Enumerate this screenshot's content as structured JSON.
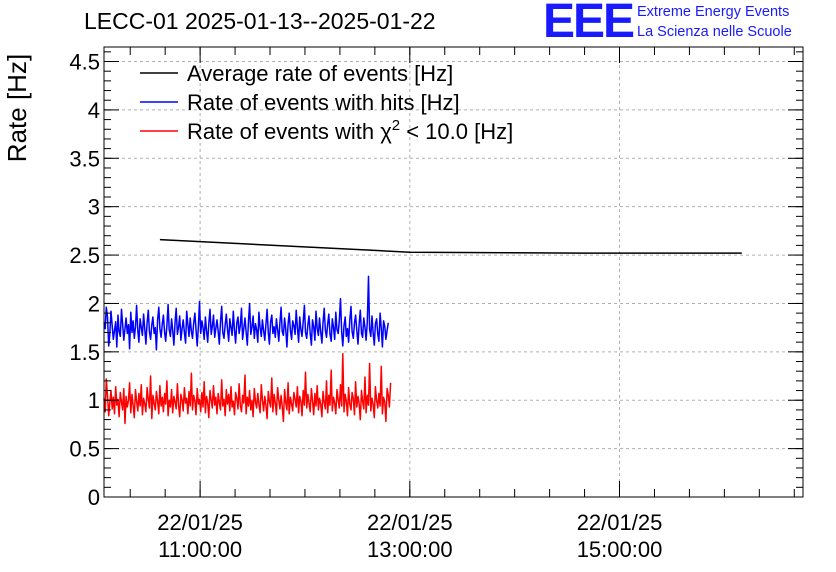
{
  "header": {
    "title": "LECC-01 2025-01-13--2025-01-22",
    "logo_text": "EEE",
    "logo_line1": "Extreme Energy Events",
    "logo_line2": "La Scienza nelle Scuole",
    "logo_color": "#1a1aff"
  },
  "chart_data": {
    "type": "line",
    "title": "LECC-01 2025-01-13--2025-01-22",
    "ylabel": "Rate [Hz]",
    "xlabel": "",
    "x_axis": {
      "type": "time",
      "range": [
        "2025-01-22 10:05:00",
        "2025-01-22 16:45:00"
      ],
      "major_ticks": [
        {
          "date": "22/01/25",
          "time": "11:00:00",
          "t": "2025-01-22 11:00:00"
        },
        {
          "date": "22/01/25",
          "time": "13:00:00",
          "t": "2025-01-22 13:00:00"
        },
        {
          "date": "22/01/25",
          "time": "15:00:00",
          "t": "2025-01-22 15:00:00"
        }
      ]
    },
    "ylim": [
      0,
      4.65
    ],
    "y_ticks": [
      "0",
      "0.5",
      "1",
      "1.5",
      "2",
      "2.5",
      "3",
      "3.5",
      "4",
      "4.5"
    ],
    "y_tick_values": [
      0,
      0.5,
      1,
      1.5,
      2,
      2.5,
      3,
      3.5,
      4,
      4.5
    ],
    "grid": true,
    "legend_placement": "top-left",
    "series": [
      {
        "name": "Average rate of events [Hz]",
        "color": "#000000",
        "points": [
          [
            "2025-01-22 10:37:00",
            2.66
          ],
          [
            "2025-01-22 13:00:00",
            2.53
          ],
          [
            "2025-01-22 14:40:00",
            2.52
          ],
          [
            "2025-01-22 16:10:00",
            2.52
          ]
        ]
      },
      {
        "name": "Rate of events with hits [Hz]",
        "color": "#0000ff",
        "start": "2025-01-22 10:05:00",
        "step_seconds": 40,
        "values": [
          1.8,
          1.74,
          1.96,
          1.86,
          1.56,
          1.68,
          1.92,
          1.77,
          1.63,
          1.72,
          1.81,
          1.55,
          1.88,
          1.71,
          1.66,
          1.94,
          1.79,
          1.62,
          1.74,
          1.85,
          1.69,
          1.78,
          1.53,
          1.91,
          1.7,
          1.82,
          1.64,
          1.76,
          1.98,
          1.72,
          1.6,
          1.84,
          1.75,
          1.67,
          1.89,
          1.73,
          1.58,
          1.8,
          1.93,
          1.71,
          1.63,
          1.78,
          1.86,
          1.69,
          1.75,
          1.52,
          1.83,
          1.96,
          1.74,
          1.65,
          1.79,
          1.88,
          1.7,
          1.61,
          1.77,
          1.99,
          1.73,
          1.66,
          1.84,
          1.72,
          1.57,
          1.81,
          1.95,
          1.68,
          1.76,
          1.87,
          1.62,
          1.74,
          1.83,
          1.7,
          1.59,
          1.92,
          1.78,
          1.66,
          1.85,
          1.71,
          1.64,
          1.8,
          1.9,
          1.73,
          1.56,
          1.77,
          2.02,
          1.69,
          1.82,
          1.75,
          1.63,
          1.86,
          1.72,
          1.6,
          1.79,
          1.94,
          1.68,
          1.76,
          1.88,
          1.65,
          1.74,
          1.83,
          1.71,
          1.58,
          1.81,
          1.97,
          1.7,
          1.64,
          1.78,
          1.89,
          1.73,
          1.61,
          1.84,
          1.75,
          1.67,
          1.92,
          1.72,
          1.59,
          1.8,
          1.86,
          1.69,
          1.77,
          1.95,
          1.63,
          1.74,
          1.85,
          1.71,
          1.57,
          1.82,
          2.0,
          1.68,
          1.76,
          1.87,
          1.64,
          1.79,
          1.73,
          1.6,
          1.91,
          1.75,
          1.66,
          1.83,
          1.72,
          1.62,
          1.78,
          1.94,
          1.7,
          1.58,
          1.81,
          1.88,
          1.69,
          1.76,
          1.65,
          1.84,
          1.73,
          1.61,
          1.8,
          1.96,
          1.71,
          1.67,
          1.85,
          1.74,
          1.55,
          1.79,
          1.9,
          1.72,
          1.63,
          1.82,
          1.77,
          1.68,
          1.93,
          1.75,
          1.6,
          1.86,
          1.73,
          1.66,
          1.81,
          1.98,
          1.7,
          1.64,
          1.78,
          1.87,
          1.69,
          1.57,
          1.83,
          1.76,
          1.62,
          1.92,
          1.74,
          1.67,
          1.85,
          1.71,
          1.59,
          1.8,
          1.95,
          1.72,
          1.65,
          1.79,
          1.89,
          1.68,
          1.61,
          1.84,
          1.75,
          1.63,
          1.91,
          1.73,
          1.69,
          1.82,
          2.05,
          1.7,
          1.56,
          1.77,
          1.86,
          1.66,
          1.74,
          1.6,
          1.83,
          1.97,
          1.71,
          1.64,
          1.8,
          1.88,
          1.72,
          1.58,
          1.78,
          1.93,
          1.69,
          1.65,
          1.85,
          1.75,
          1.62,
          1.81,
          2.28,
          1.73,
          1.66,
          1.87,
          1.7,
          1.57,
          1.79,
          1.84,
          1.68,
          1.61,
          1.9,
          1.74,
          1.55,
          1.82,
          1.76,
          1.63,
          1.72,
          1.8
        ]
      },
      {
        "name": "Rate of events with χ² < 10.0 [Hz]",
        "color": "#ff0000",
        "start": "2025-01-22 10:05:00",
        "step_seconds": 40,
        "values": [
          1.02,
          0.88,
          1.22,
          1.05,
          0.84,
          0.97,
          1.1,
          0.91,
          1.03,
          0.86,
          1.14,
          0.95,
          1.01,
          0.83,
          1.08,
          0.98,
          0.9,
          1.12,
          0.76,
          1.04,
          0.93,
          1.0,
          1.18,
          0.87,
          1.06,
          0.95,
          0.82,
          1.11,
          0.99,
          0.89,
          1.07,
          0.94,
          1.16,
          0.85,
          1.02,
          0.96,
          0.88,
          1.13,
          1.01,
          0.92,
          1.25,
          0.81,
          1.05,
          0.97,
          0.9,
          1.09,
          0.99,
          0.86,
          1.15,
          0.94,
          1.03,
          0.88,
          1.07,
          0.96,
          1.2,
          0.84,
          1.0,
          0.93,
          1.11,
          0.87,
          1.04,
          0.98,
          0.91,
          1.17,
          0.95,
          0.83,
          1.06,
          1.0,
          0.89,
          1.13,
          0.97,
          1.02,
          0.86,
          1.09,
          0.94,
          1.28,
          0.9,
          1.05,
          0.99,
          0.85,
          1.12,
          0.96,
          1.01,
          0.88,
          1.08,
          0.93,
          1.19,
          0.87,
          1.04,
          0.97,
          0.82,
          1.1,
          1.0,
          0.92,
          1.15,
          0.95,
          1.03,
          0.86,
          1.07,
          0.98,
          0.9,
          1.21,
          0.94,
          1.01,
          0.84,
          1.11,
          0.96,
          1.06,
          0.89,
          1.14,
          0.93,
          0.99,
          0.85,
          1.08,
          1.02,
          0.91,
          1.17,
          0.95,
          0.88,
          1.05,
          0.97,
          1.26,
          0.86,
          1.03,
          0.94,
          1.1,
          0.9,
          1.0,
          0.83,
          1.12,
          0.98,
          0.92,
          1.07,
          0.96,
          0.87,
          1.16,
          1.01,
          0.89,
          1.04,
          0.95,
          0.81,
          1.09,
          0.99,
          0.93,
          1.23,
          0.88,
          1.06,
          0.97,
          0.85,
          1.13,
          1.0,
          0.91,
          1.05,
          0.94,
          0.78,
          1.11,
          0.98,
          0.9,
          1.18,
          0.86,
          1.03,
          0.96,
          0.89,
          1.08,
          1.01,
          0.93,
          1.14,
          0.87,
          1.04,
          0.99,
          0.84,
          1.1,
          0.95,
          1.29,
          0.92,
          1.06,
          0.97,
          0.88,
          1.12,
          1.0,
          0.85,
          1.07,
          0.94,
          1.15,
          0.9,
          1.02,
          0.96,
          0.83,
          1.09,
          0.98,
          0.91,
          1.2,
          0.87,
          1.05,
          0.95,
          1.31,
          0.89,
          1.03,
          0.97,
          0.86,
          1.11,
          1.0,
          0.92,
          1.16,
          0.94,
          1.48,
          0.88,
          1.06,
          0.99,
          0.84,
          1.13,
          0.96,
          0.9,
          1.08,
          1.02,
          0.85,
          1.19,
          0.93,
          1.04,
          0.97,
          0.8,
          1.1,
          0.99,
          0.91,
          1.24,
          0.87,
          1.05,
          0.95,
          1.38,
          0.89,
          1.02,
          0.96,
          0.82,
          1.14,
          1.0,
          0.92,
          1.07,
          0.94,
          1.35,
          0.86,
          1.03,
          0.98,
          0.78,
          1.12,
          1.05,
          0.93,
          1.18
        ]
      }
    ]
  }
}
